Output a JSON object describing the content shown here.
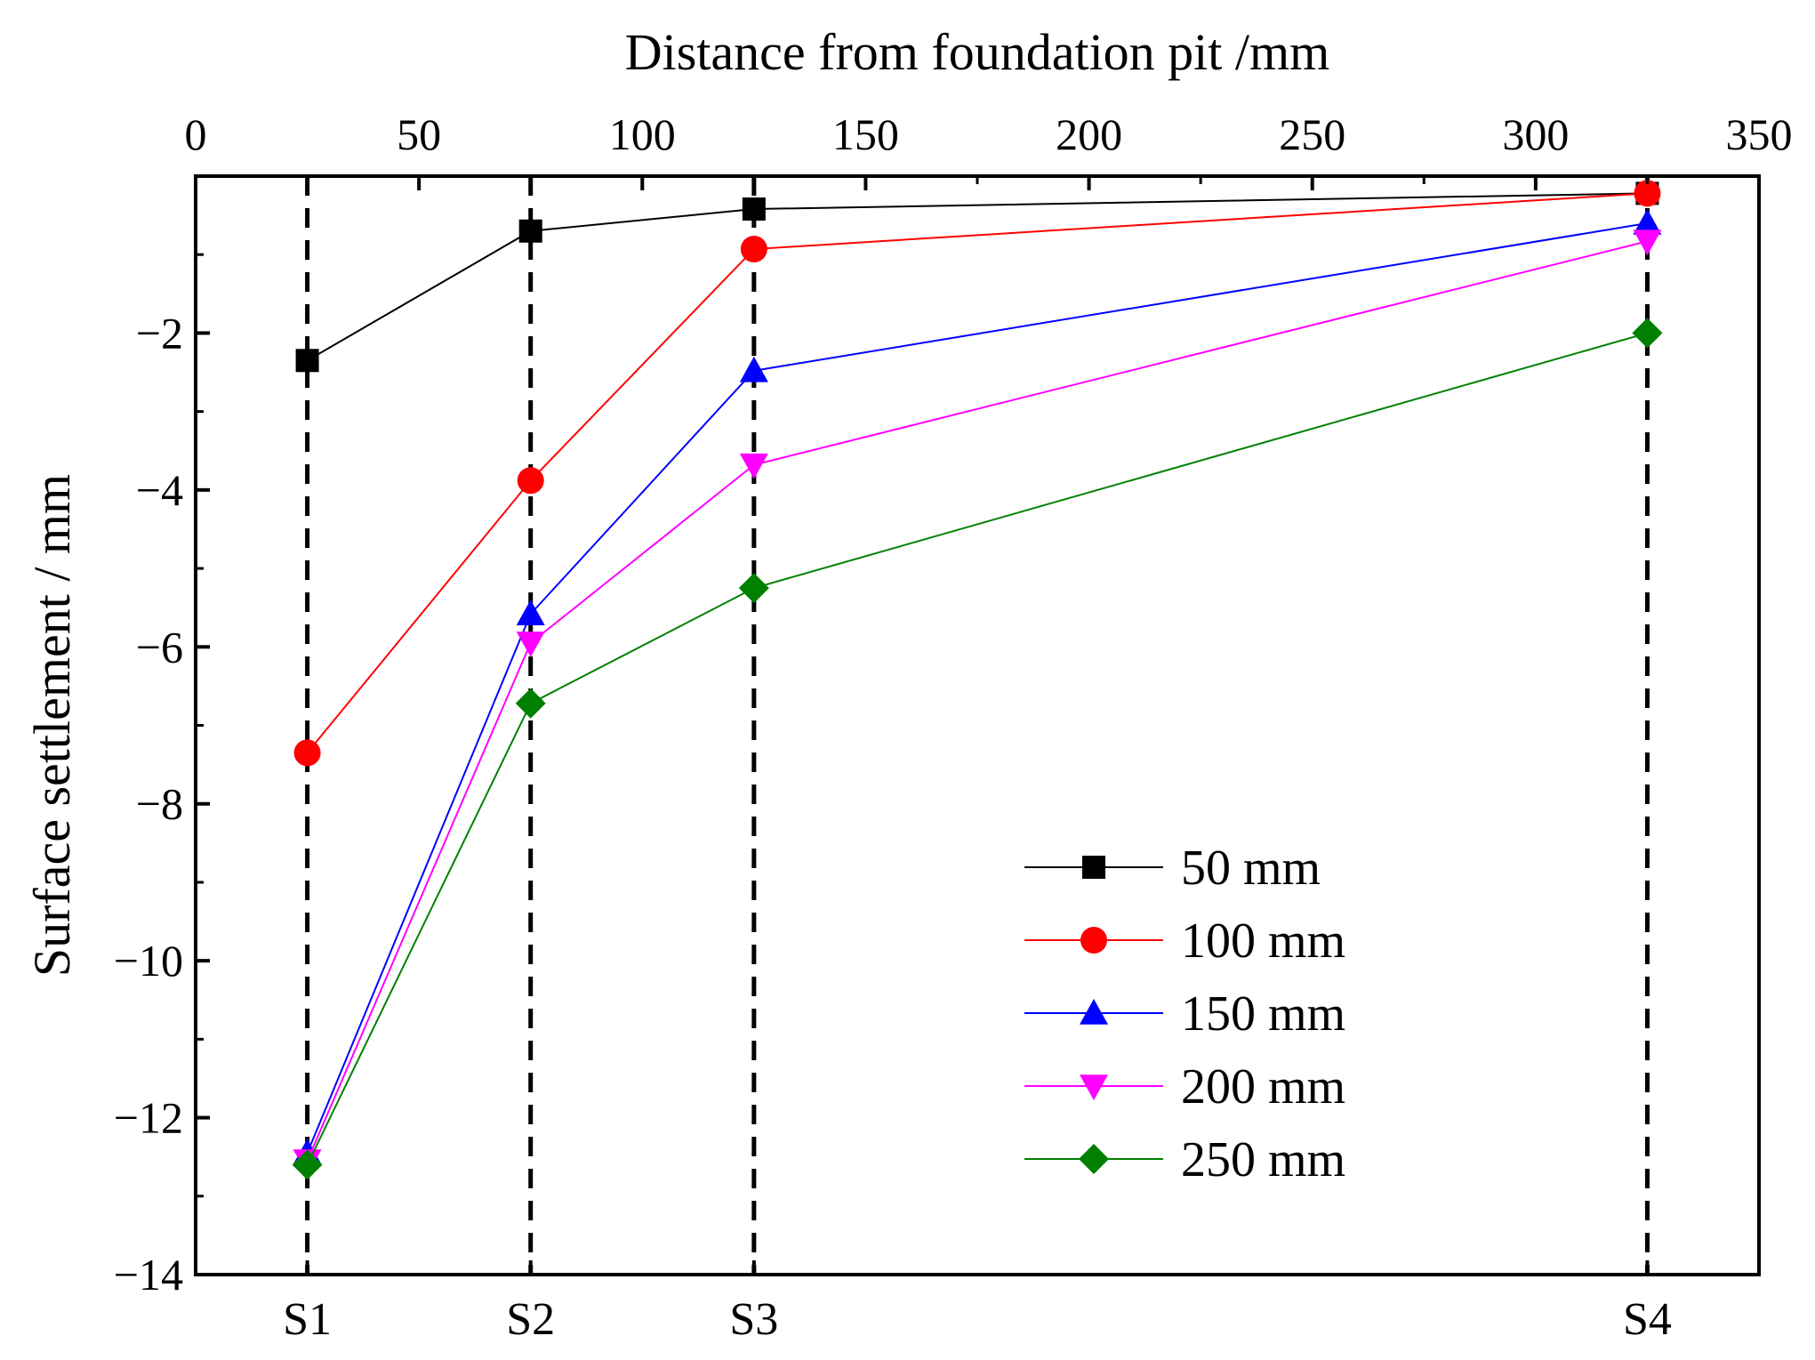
{
  "chart_data": {
    "type": "line",
    "xlabel": "Distance from foundation pit /mm",
    "ylabel": "Surface settlement / mm",
    "xlim": [
      0,
      350
    ],
    "ylim": [
      -14,
      0
    ],
    "x_ticks": [
      0,
      50,
      100,
      150,
      200,
      250,
      300,
      350
    ],
    "x_tick_labels": [
      "0",
      "50",
      "100",
      "150",
      "200",
      "250",
      "300",
      "350"
    ],
    "y_ticks": [
      -2,
      -4,
      -6,
      -8,
      -10,
      -12,
      -14
    ],
    "y_tick_labels": [
      "−2",
      "−4",
      "−6",
      "−8",
      "−10",
      "−12",
      "−14"
    ],
    "sections": [
      {
        "label": "S1",
        "x": 25
      },
      {
        "label": "S2",
        "x": 75
      },
      {
        "label": "S3",
        "x": 125
      },
      {
        "label": "S4",
        "x": 325
      }
    ],
    "x": [
      25,
      75,
      125,
      325
    ],
    "series": [
      {
        "name": "50 mm",
        "color": "#000000",
        "marker": "square",
        "values": [
          -2.35,
          -0.7,
          -0.42,
          -0.22
        ]
      },
      {
        "name": "100 mm",
        "color": "#ff0000",
        "marker": "circle",
        "values": [
          -7.35,
          -3.88,
          -0.93,
          -0.22
        ]
      },
      {
        "name": "150 mm",
        "color": "#0000ff",
        "marker": "triangle-up",
        "values": [
          -12.45,
          -5.58,
          -2.48,
          -0.6
        ]
      },
      {
        "name": "200 mm",
        "color": "#ff00ff",
        "marker": "triangle-down",
        "values": [
          -12.55,
          -5.95,
          -3.68,
          -0.83
        ]
      },
      {
        "name": "250 mm",
        "color": "#008000",
        "marker": "diamond",
        "values": [
          -12.6,
          -6.72,
          -5.25,
          -2.0
        ]
      }
    ],
    "legend_position": "bottom-right"
  }
}
